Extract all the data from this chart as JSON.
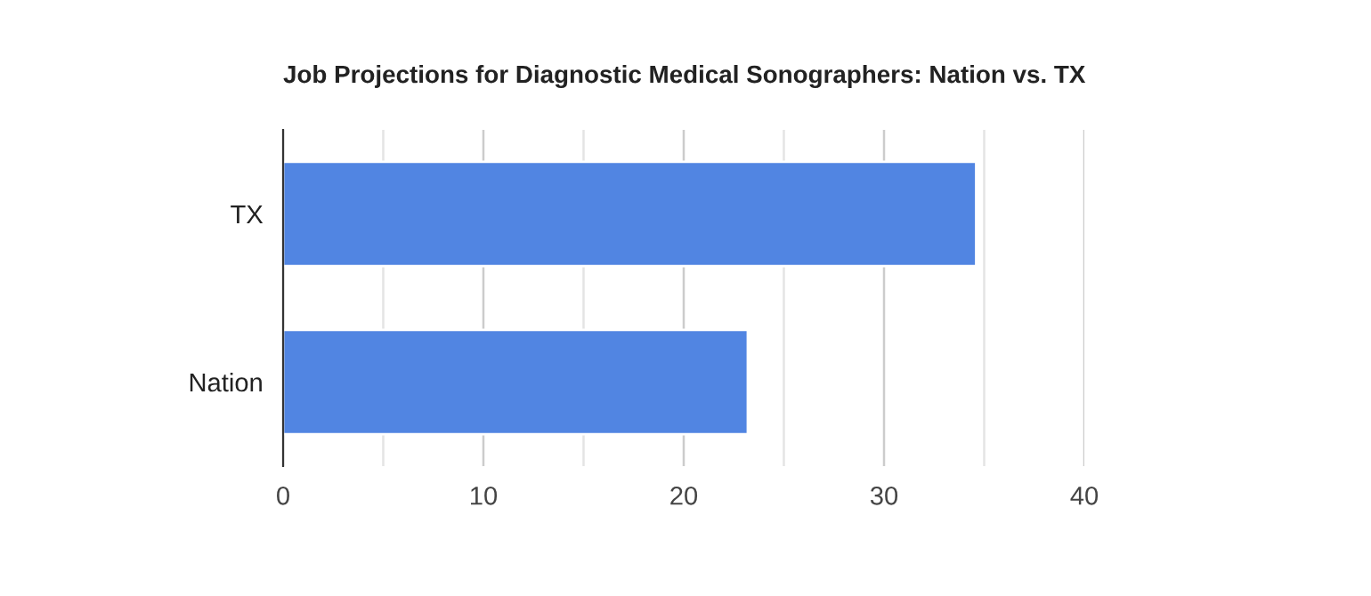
{
  "chart_data": {
    "type": "bar",
    "orientation": "horizontal",
    "title": "Job Projections for Diagnostic Medical Sonographers: Nation vs. TX",
    "categories": [
      "TX",
      "Nation"
    ],
    "series": [
      {
        "color": "#5185e2",
        "values": [
          34.6,
          23.2
        ]
      }
    ],
    "xlim": [
      0,
      40
    ],
    "xticks": [
      0,
      {
        "value": 5,
        "label": null
      },
      10,
      {
        "value": 15,
        "label": null
      },
      20,
      {
        "value": 25,
        "label": null
      },
      30,
      {
        "value": 35,
        "label": null
      },
      40
    ],
    "grid": "x",
    "legend": false
  }
}
